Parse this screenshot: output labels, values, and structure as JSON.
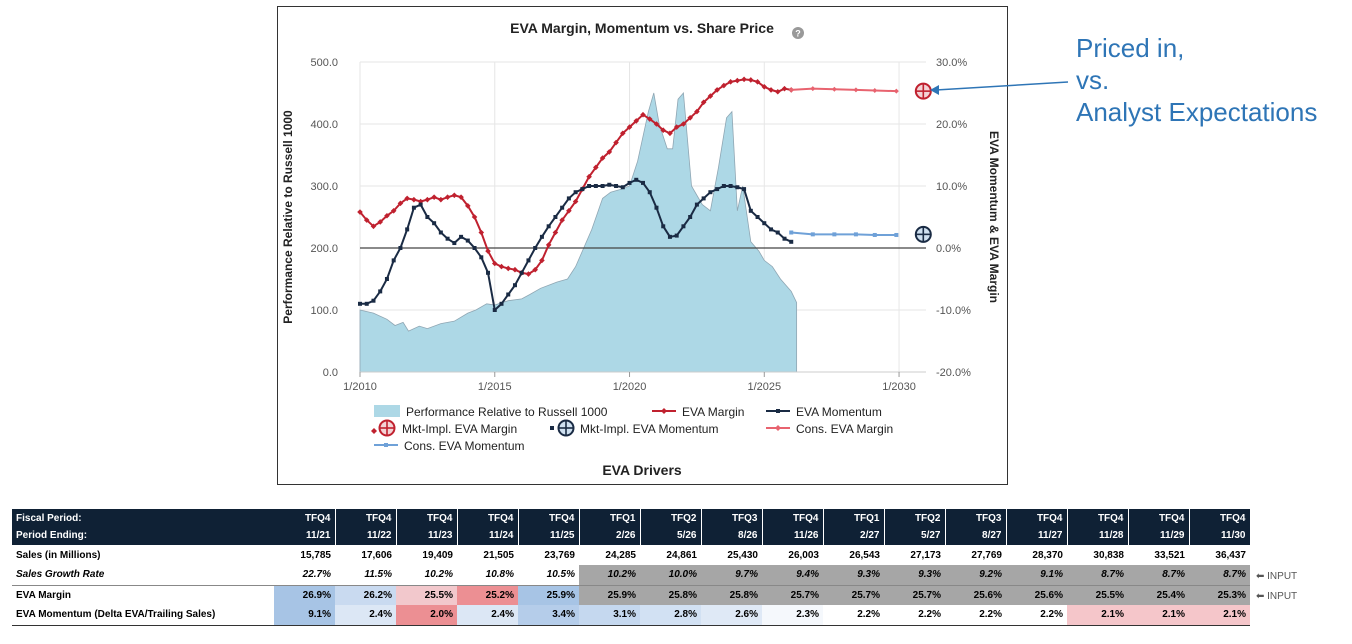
{
  "chart_data": {
    "type": "line",
    "title": "EVA Margin, Momentum vs. Share Price",
    "help_glyph": "?",
    "subtitle_bottom": "EVA Drivers",
    "ylabel_left": "Performance Relative to Russell 1000",
    "ylabel_right": "EVA Momentum & EVA Margin",
    "ylim_left": [
      0,
      500
    ],
    "ylim_right": [
      -20,
      30
    ],
    "xlim": [
      2010,
      2031
    ],
    "y_left_ticks": [
      "0.0",
      "100.0",
      "200.0",
      "300.0",
      "400.0",
      "500.0"
    ],
    "y_left_tick_values": [
      0,
      100,
      200,
      300,
      400,
      500
    ],
    "y_right_ticks": [
      "-20.0%",
      "-10.0%",
      "0.0%",
      "10.0%",
      "20.0%",
      "30.0%"
    ],
    "y_right_tick_values": [
      -20,
      -10,
      0,
      10,
      20,
      30
    ],
    "x_ticks": [
      "1/2010",
      "1/2015",
      "1/2020",
      "1/2025",
      "1/2030"
    ],
    "x_tick_values": [
      2010,
      2015,
      2020,
      2025,
      2030
    ],
    "legend": [
      "Performance Relative to Russell 1000",
      "EVA Margin",
      "EVA Momentum",
      "Mkt-Impl. EVA Margin",
      "Mkt-Impl. EVA Momentum",
      "Cons. EVA Margin",
      "Cons. EVA Momentum"
    ],
    "series": [
      {
        "name": "Performance Relative to Russell 1000",
        "axis": "left",
        "color": "#add8e6",
        "x": [
          2010.0,
          2010.5,
          2011.0,
          2011.3,
          2011.6,
          2011.8,
          2012.2,
          2012.5,
          2013.0,
          2013.5,
          2014.0,
          2014.3,
          2014.7,
          2015.0,
          2015.5,
          2016.0,
          2016.3,
          2016.7,
          2017.0,
          2017.3,
          2017.7,
          2018.0,
          2018.3,
          2018.6,
          2019.0,
          2019.3,
          2019.7,
          2020.0,
          2020.3,
          2020.5,
          2020.7,
          2020.9,
          2021.1,
          2021.4,
          2021.6,
          2021.8,
          2022.0,
          2022.3,
          2022.7,
          2023.0,
          2023.3,
          2023.6,
          2023.8,
          2024.0,
          2024.2,
          2024.5,
          2024.8,
          2025.0,
          2025.3,
          2025.6,
          2026.0,
          2026.2
        ],
        "values": [
          100,
          95,
          85,
          75,
          80,
          66,
          74,
          70,
          78,
          82,
          95,
          100,
          110,
          108,
          115,
          118,
          125,
          135,
          140,
          145,
          150,
          170,
          200,
          230,
          280,
          290,
          295,
          300,
          340,
          380,
          420,
          450,
          400,
          360,
          360,
          440,
          450,
          300,
          270,
          260,
          330,
          410,
          420,
          260,
          300,
          210,
          195,
          180,
          170,
          150,
          130,
          112
        ]
      },
      {
        "name": "EVA Margin",
        "axis": "right",
        "color": "#c0212f",
        "x": [
          2010.0,
          2010.25,
          2010.5,
          2010.75,
          2011.0,
          2011.25,
          2011.5,
          2011.75,
          2012.0,
          2012.25,
          2012.5,
          2012.75,
          2013.0,
          2013.25,
          2013.5,
          2013.75,
          2014.0,
          2014.25,
          2014.5,
          2014.75,
          2015.0,
          2015.25,
          2015.5,
          2015.75,
          2016.0,
          2016.25,
          2016.5,
          2016.75,
          2017.0,
          2017.25,
          2017.5,
          2017.75,
          2018.0,
          2018.25,
          2018.5,
          2018.75,
          2019.0,
          2019.25,
          2019.5,
          2019.75,
          2020.0,
          2020.25,
          2020.5,
          2020.75,
          2021.0,
          2021.25,
          2021.5,
          2021.75,
          2022.0,
          2022.25,
          2022.5,
          2022.75,
          2023.0,
          2023.25,
          2023.5,
          2023.75,
          2024.0,
          2024.25,
          2024.5,
          2024.75,
          2025.0,
          2025.25,
          2025.5,
          2025.75,
          2026.0
        ],
        "values": [
          5.8,
          4.5,
          3.5,
          4.2,
          5.2,
          6.0,
          7.2,
          8.0,
          7.8,
          7.5,
          7.8,
          8.2,
          7.8,
          8.2,
          8.5,
          8.2,
          6.8,
          5.0,
          2.5,
          -0.5,
          -2.5,
          -3.0,
          -3.3,
          -3.5,
          -4.0,
          -4.2,
          -3.5,
          -2.0,
          0.5,
          2.5,
          4.5,
          6.0,
          7.5,
          9.5,
          11.5,
          13.0,
          14.5,
          15.5,
          17.0,
          18.5,
          19.5,
          20.5,
          21.5,
          20.8,
          20.0,
          19.0,
          18.5,
          19.5,
          20.0,
          21.0,
          22.0,
          23.5,
          24.5,
          25.5,
          26.2,
          26.8,
          27.0,
          27.2,
          27.1,
          26.8,
          26.0,
          25.5,
          25.2,
          25.7,
          25.5
        ]
      },
      {
        "name": "EVA Momentum",
        "axis": "right",
        "color": "#1a2b44",
        "x": [
          2010.0,
          2010.25,
          2010.5,
          2010.75,
          2011.0,
          2011.25,
          2011.5,
          2011.75,
          2012.0,
          2012.25,
          2012.5,
          2012.75,
          2013.0,
          2013.25,
          2013.5,
          2013.75,
          2014.0,
          2014.25,
          2014.5,
          2014.75,
          2015.0,
          2015.25,
          2015.5,
          2015.75,
          2016.0,
          2016.25,
          2016.5,
          2016.75,
          2017.0,
          2017.25,
          2017.5,
          2017.75,
          2018.0,
          2018.25,
          2018.5,
          2018.75,
          2019.0,
          2019.25,
          2019.5,
          2019.75,
          2020.0,
          2020.25,
          2020.5,
          2020.75,
          2021.0,
          2021.25,
          2021.5,
          2021.75,
          2022.0,
          2022.25,
          2022.5,
          2022.75,
          2023.0,
          2023.25,
          2023.5,
          2023.75,
          2024.0,
          2024.25,
          2024.5,
          2024.75,
          2025.0,
          2025.25,
          2025.5,
          2025.75,
          2026.0
        ],
        "values": [
          -9.0,
          -9.0,
          -8.5,
          -7.0,
          -5.0,
          -2.0,
          0.0,
          3.0,
          6.5,
          7.0,
          5.0,
          4.0,
          2.5,
          1.5,
          0.8,
          1.8,
          1.2,
          0.0,
          -1.5,
          -4.0,
          -10.0,
          -9.0,
          -7.5,
          -6.0,
          -4.0,
          -2.0,
          0.0,
          1.8,
          3.5,
          5.0,
          6.5,
          8.0,
          9.0,
          9.5,
          10.0,
          10.0,
          10.0,
          10.2,
          10.0,
          9.8,
          10.5,
          11.0,
          10.5,
          9.0,
          6.5,
          3.5,
          1.8,
          2.0,
          3.5,
          5.0,
          7.0,
          8.0,
          9.0,
          9.5,
          10.0,
          10.0,
          9.8,
          9.5,
          6.0,
          5.0,
          4.0,
          3.0,
          2.5,
          1.5,
          1.0
        ]
      },
      {
        "name": "Cons. EVA Margin",
        "axis": "right",
        "color": "#e8636f",
        "x": [
          2026.0,
          2026.8,
          2027.6,
          2028.4,
          2029.1,
          2029.9
        ],
        "values": [
          25.5,
          25.7,
          25.6,
          25.5,
          25.4,
          25.3
        ]
      },
      {
        "name": "Cons. EVA Momentum",
        "axis": "right",
        "color": "#6fa1d8",
        "x": [
          2026.0,
          2026.8,
          2027.6,
          2028.4,
          2029.1,
          2029.9
        ],
        "values": [
          2.5,
          2.2,
          2.2,
          2.2,
          2.1,
          2.1
        ]
      },
      {
        "name": "Mkt-Impl. EVA Margin",
        "axis": "right",
        "color": "#c0212f",
        "x": [
          2030.9
        ],
        "values": [
          25.3
        ]
      },
      {
        "name": "Mkt-Impl. EVA Momentum",
        "axis": "right",
        "color": "#1a2b44",
        "x": [
          2030.9
        ],
        "values": [
          2.2
        ]
      }
    ]
  },
  "annotation": {
    "lines": [
      "Priced in,",
      "vs.",
      "Analyst Expectations"
    ],
    "color": "#2e75b6"
  },
  "table": {
    "header_label_1": "Fiscal Period:",
    "header_label_2": "Period Ending:",
    "fiscal_periods": [
      "TFQ4",
      "TFQ4",
      "TFQ4",
      "TFQ4",
      "TFQ4",
      "TFQ1",
      "TFQ2",
      "TFQ3",
      "TFQ4",
      "TFQ1",
      "TFQ2",
      "TFQ3",
      "TFQ4",
      "TFQ4",
      "TFQ4",
      "TFQ4"
    ],
    "period_endings": [
      "11/21",
      "11/22",
      "11/23",
      "11/24",
      "11/25",
      "2/26",
      "5/26",
      "8/26",
      "11/26",
      "2/27",
      "5/27",
      "8/27",
      "11/27",
      "11/28",
      "11/29",
      "11/30"
    ],
    "rows": [
      {
        "label": "Sales (in Millions)",
        "cls": "row-sales",
        "values": [
          "15,785",
          "17,606",
          "19,409",
          "21,505",
          "23,769",
          "24,285",
          "24,861",
          "25,430",
          "26,003",
          "26,543",
          "27,173",
          "27,769",
          "28,370",
          "30,838",
          "33,521",
          "36,437"
        ],
        "bg": [
          "#fff",
          "#fff",
          "#fff",
          "#fff",
          "#fff",
          "#fff",
          "#fff",
          "#fff",
          "#fff",
          "#fff",
          "#fff",
          "#fff",
          "#fff",
          "#fff",
          "#fff",
          "#fff"
        ]
      },
      {
        "label": "Sales Growth Rate",
        "cls": "row-growth",
        "values": [
          "22.7%",
          "11.5%",
          "10.2%",
          "10.8%",
          "10.5%",
          "10.2%",
          "10.0%",
          "9.7%",
          "9.4%",
          "9.3%",
          "9.3%",
          "9.2%",
          "9.1%",
          "8.7%",
          "8.7%",
          "8.7%"
        ],
        "bg": [
          "#fff",
          "#fff",
          "#fff",
          "#fff",
          "#fff",
          "#a6a6a6",
          "#a6a6a6",
          "#a6a6a6",
          "#a6a6a6",
          "#a6a6a6",
          "#a6a6a6",
          "#a6a6a6",
          "#a6a6a6",
          "#a6a6a6",
          "#a6a6a6",
          "#a6a6a6"
        ],
        "tag": "⬅ INPUT"
      },
      {
        "label": "EVA Margin",
        "cls": "row-margin",
        "values": [
          "26.9%",
          "26.2%",
          "25.5%",
          "25.2%",
          "25.9%",
          "25.9%",
          "25.8%",
          "25.8%",
          "25.7%",
          "25.7%",
          "25.7%",
          "25.6%",
          "25.6%",
          "25.5%",
          "25.4%",
          "25.3%"
        ],
        "bg": [
          "#a7c4e5",
          "#c9daf0",
          "#f2c8cc",
          "#ec8f93",
          "#a7c4e5",
          "#a6a6a6",
          "#a6a6a6",
          "#a6a6a6",
          "#a6a6a6",
          "#a6a6a6",
          "#a6a6a6",
          "#a6a6a6",
          "#a6a6a6",
          "#a6a6a6",
          "#a6a6a6",
          "#a6a6a6"
        ],
        "tag": "⬅ INPUT"
      },
      {
        "label": "EVA Momentum (Delta EVA/Trailing Sales)",
        "cls": "row-mom",
        "values": [
          "9.1%",
          "2.4%",
          "2.0%",
          "2.4%",
          "3.4%",
          "3.1%",
          "2.8%",
          "2.6%",
          "2.3%",
          "2.2%",
          "2.2%",
          "2.2%",
          "2.2%",
          "2.1%",
          "2.1%",
          "2.1%"
        ],
        "bg": [
          "#a7c4e5",
          "#dce7f5",
          "#ec8f93",
          "#dce7f5",
          "#b5cdea",
          "#c5d8ef",
          "#d2e1f3",
          "#dfe9f6",
          "#f5f8fc",
          "#ffffff",
          "#ffffff",
          "#ffffff",
          "#ffffff",
          "#f5c6ca",
          "#f5c6ca",
          "#f5c6ca"
        ]
      }
    ]
  }
}
